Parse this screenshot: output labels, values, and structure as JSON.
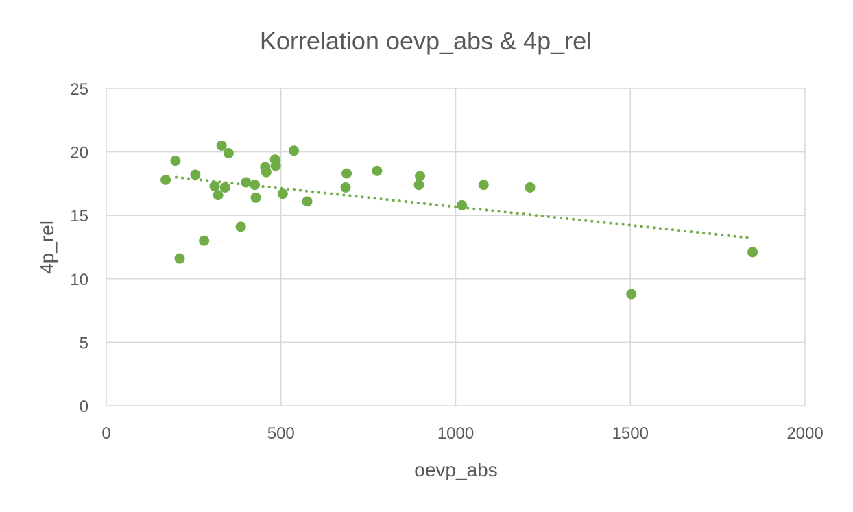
{
  "chart_data": {
    "type": "scatter",
    "title": "Korrelation oevp_abs & 4p_rel",
    "xlabel": "oevp_abs",
    "ylabel": "4p_rel",
    "xlim": [
      0,
      2000
    ],
    "ylim": [
      0,
      25
    ],
    "x_ticks": [
      0,
      500,
      1000,
      1500,
      2000
    ],
    "y_ticks": [
      0,
      5,
      10,
      15,
      20,
      25
    ],
    "grid": true,
    "legend": "none",
    "marker_color": "#70ad47",
    "trendline": {
      "type": "linear",
      "style": "dotted",
      "color": "#70ad47",
      "x": [
        200,
        1850
      ],
      "y": [
        18.0,
        13.2
      ]
    },
    "series": [
      {
        "x": [
          170,
          198,
          210,
          255,
          280,
          310,
          320,
          330,
          340,
          350,
          385,
          400,
          425,
          428,
          455,
          458,
          483,
          485,
          505,
          537,
          575,
          685,
          688,
          775,
          895,
          898,
          1018,
          1080,
          1213,
          1503,
          1850
        ],
        "y": [
          17.8,
          19.3,
          11.6,
          18.2,
          13.0,
          17.3,
          16.6,
          20.5,
          17.2,
          19.9,
          14.1,
          17.6,
          17.4,
          16.4,
          18.8,
          18.4,
          19.4,
          18.9,
          16.7,
          20.1,
          16.1,
          17.2,
          18.3,
          18.5,
          17.4,
          18.1,
          15.8,
          17.4,
          17.2,
          8.8,
          12.1
        ]
      }
    ]
  }
}
